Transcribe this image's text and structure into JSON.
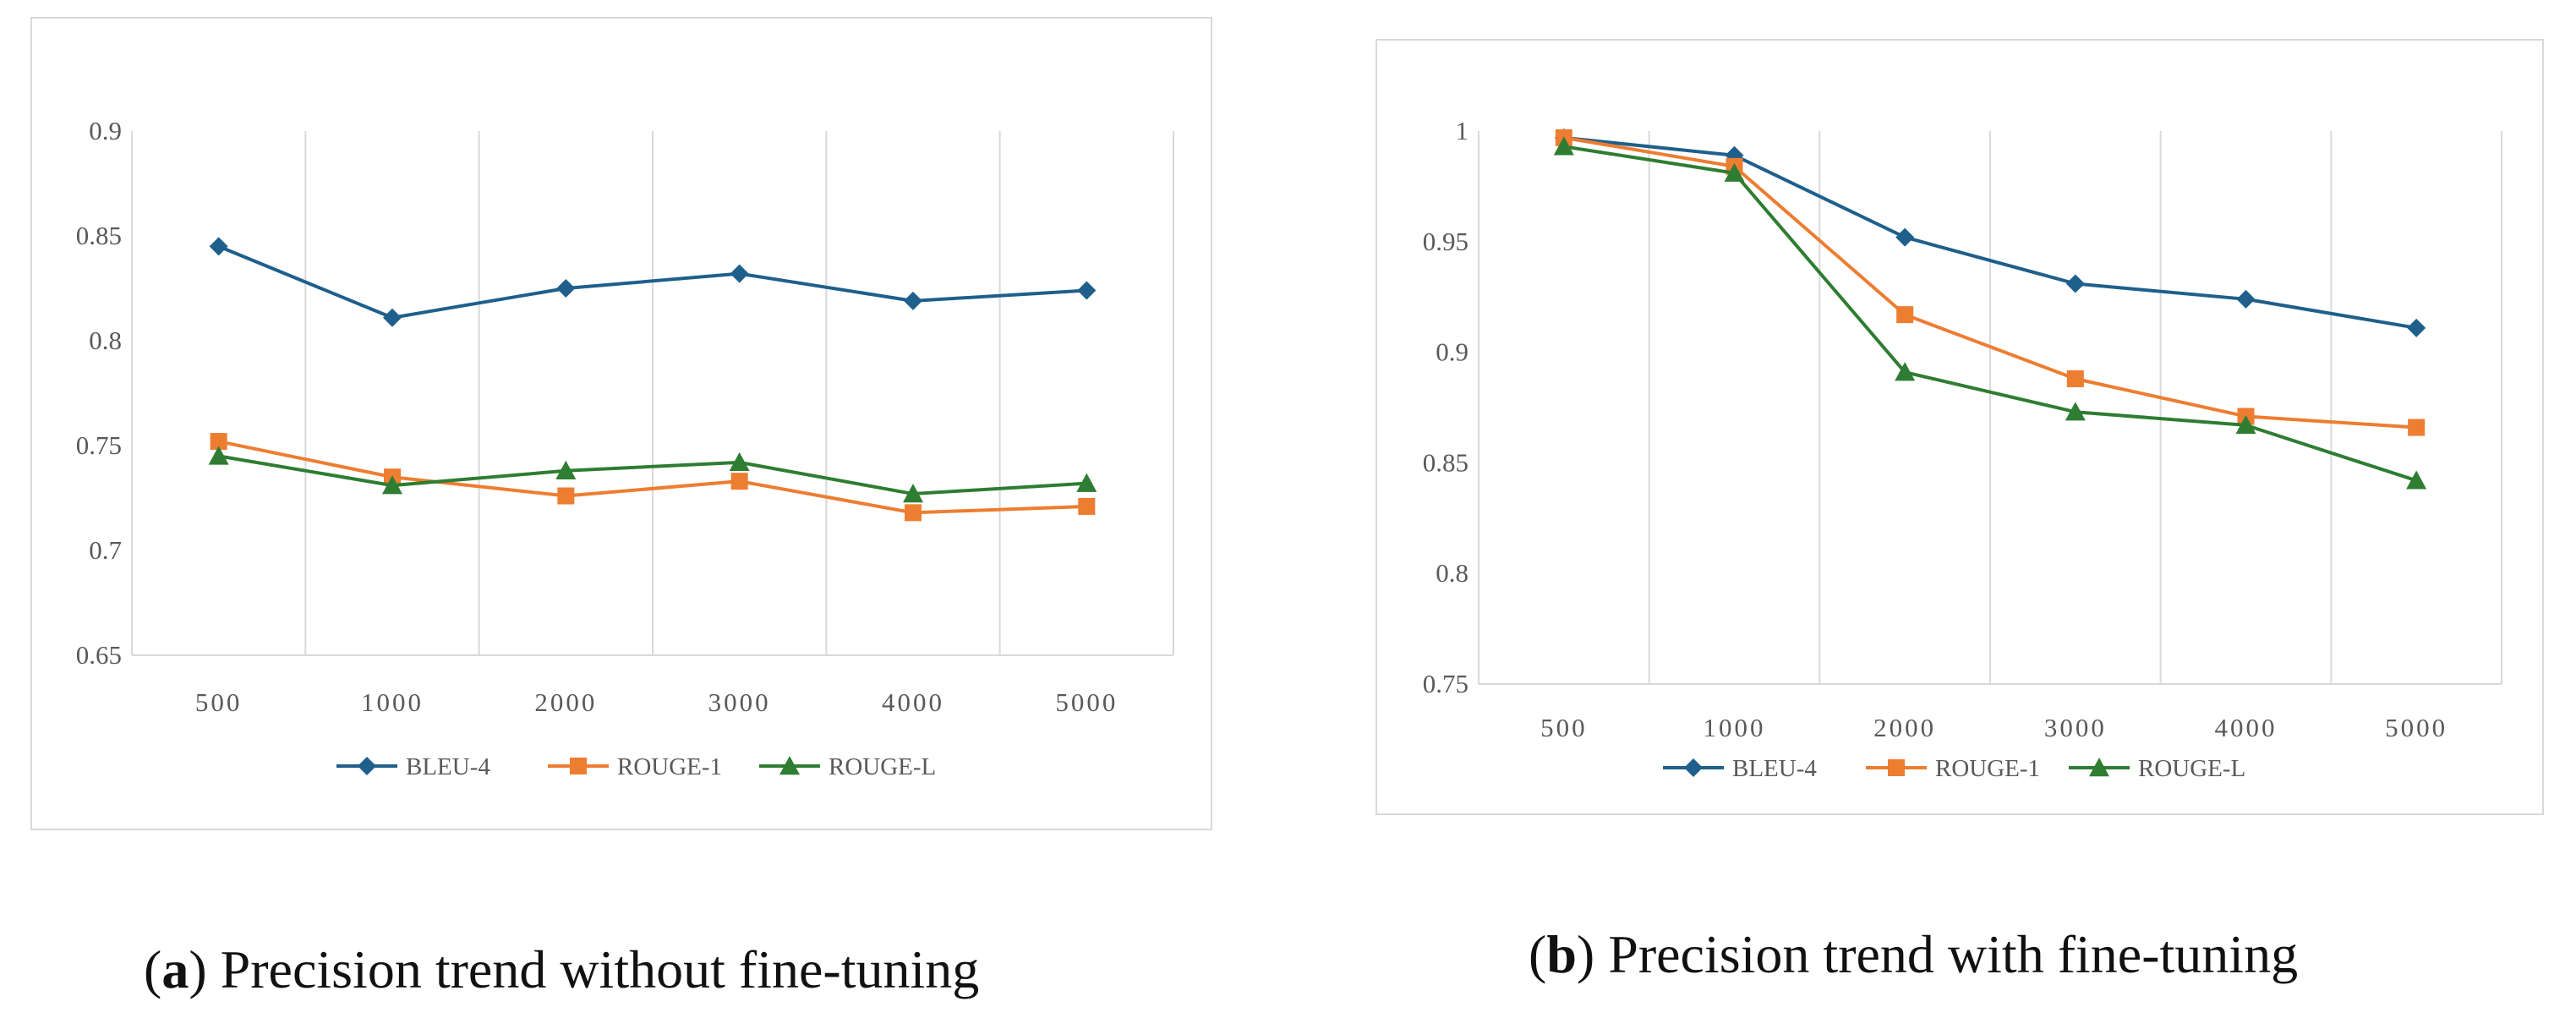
{
  "chart_data": [
    {
      "type": "line",
      "title": "",
      "xlabel": "",
      "ylabel": "",
      "categories": [
        "500",
        "1000",
        "2000",
        "3000",
        "4000",
        "5000"
      ],
      "ylim": [
        0.65,
        0.9
      ],
      "yticks": [
        "0.9",
        "0.85",
        "0.8",
        "0.75",
        "0.7",
        "0.65"
      ],
      "ytick_values": [
        0.9,
        0.85,
        0.8,
        0.75,
        0.7,
        0.65
      ],
      "grid": "vertical",
      "legend": "bottom",
      "series": [
        {
          "name": "BLEU-4",
          "color": "#1f5f8b",
          "marker": "diamond",
          "values": [
            0.845,
            0.811,
            0.825,
            0.832,
            0.819,
            0.824
          ]
        },
        {
          "name": "ROUGE-1",
          "color": "#ed7d31",
          "marker": "square",
          "values": [
            0.752,
            0.735,
            0.726,
            0.733,
            0.718,
            0.721
          ]
        },
        {
          "name": "ROUGE-L",
          "color": "#2e7d32",
          "marker": "triangle",
          "values": [
            0.745,
            0.731,
            0.738,
            0.742,
            0.727,
            0.732
          ]
        }
      ]
    },
    {
      "type": "line",
      "title": "",
      "xlabel": "",
      "ylabel": "",
      "categories": [
        "500",
        "1000",
        "2000",
        "3000",
        "4000",
        "5000"
      ],
      "ylim": [
        0.75,
        1.0
      ],
      "yticks": [
        "1",
        "0.95",
        "0.9",
        "0.85",
        "0.8",
        "0.75"
      ],
      "ytick_values": [
        1.0,
        0.95,
        0.9,
        0.85,
        0.8,
        0.75
      ],
      "grid": "vertical",
      "legend": "bottom",
      "series": [
        {
          "name": "BLEU-4",
          "color": "#1f5f8b",
          "marker": "diamond",
          "values": [
            0.997,
            0.989,
            0.952,
            0.931,
            0.924,
            0.911
          ]
        },
        {
          "name": "ROUGE-1",
          "color": "#ed7d31",
          "marker": "square",
          "values": [
            0.997,
            0.984,
            0.917,
            0.888,
            0.871,
            0.866
          ]
        },
        {
          "name": "ROUGE-L",
          "color": "#2e7d32",
          "marker": "triangle",
          "values": [
            0.993,
            0.981,
            0.891,
            0.873,
            0.867,
            0.842
          ]
        }
      ]
    }
  ],
  "captions": {
    "a": {
      "letter": "a",
      "text": " Precision trend without fine-tuning"
    },
    "b": {
      "letter": "b",
      "text": " Precision trend with fine-tuning"
    }
  }
}
